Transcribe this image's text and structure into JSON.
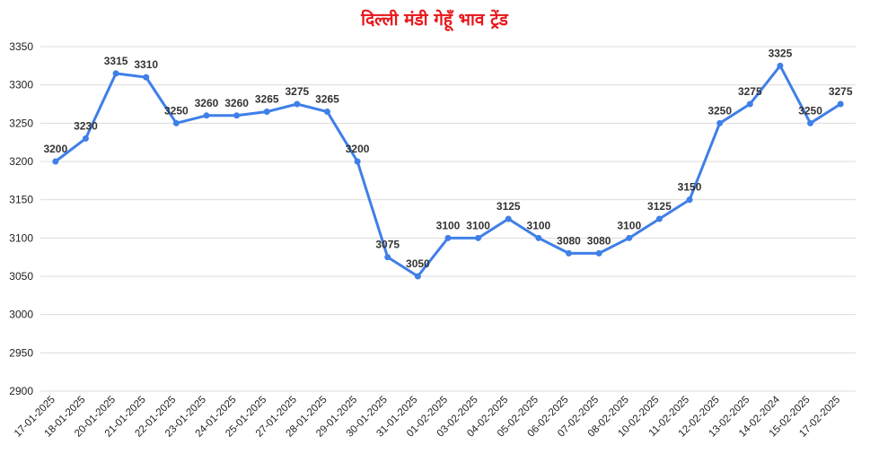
{
  "colors": {
    "title": "#e8161b",
    "line": "#3f7fe8",
    "grid": "#dcdcdc",
    "text": "#222222"
  },
  "chart_data": {
    "type": "line",
    "title": "दिल्ली मंडी गेहूँ भाव ट्रेंड",
    "xlabel": "",
    "ylabel": "",
    "ylim": [
      2900,
      3350
    ],
    "yticks": [
      2900,
      2950,
      3000,
      3050,
      3100,
      3150,
      3200,
      3250,
      3300,
      3350
    ],
    "grid": true,
    "legend": "none",
    "categories": [
      "17-01-2025",
      "18-01-2025",
      "20-01-2025",
      "21-01-2025",
      "22-01-2025",
      "23-01-2025",
      "24-01-2025",
      "25-01-2025",
      "27-01-2025",
      "28-01-2025",
      "29-01-2025",
      "30-01-2025",
      "31-01-2025",
      "01-02-2025",
      "03-02-2025",
      "04-02-2025",
      "05-02-2025",
      "06-02-2025",
      "07-02-2025",
      "08-02-2025",
      "10-02-2025",
      "11-02-2025",
      "12-02-2025",
      "13-02-2025",
      "14-02-2024",
      "15-02-2025",
      "17-02-2025"
    ],
    "series": [
      {
        "values": [
          3200,
          3230,
          3315,
          3310,
          3250,
          3260,
          3260,
          3265,
          3275,
          3265,
          3200,
          3075,
          3050,
          3100,
          3100,
          3125,
          3100,
          3080,
          3080,
          3100,
          3125,
          3150,
          3250,
          3275,
          3325,
          3250,
          3275
        ]
      }
    ]
  }
}
